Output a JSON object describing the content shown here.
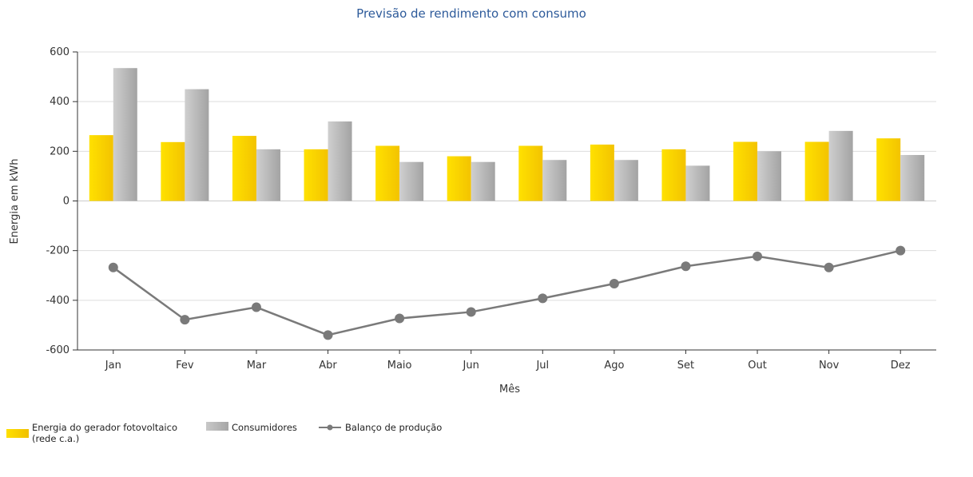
{
  "chart_data": {
    "type": "bar",
    "title": "Previsão de rendimento com consumo",
    "xlabel": "Mês",
    "ylabel": "Energia em kWh",
    "ylim": [
      -600,
      600
    ],
    "yticks": [
      600,
      400,
      200,
      0,
      -200,
      -400,
      -600
    ],
    "grid": true,
    "legend_position": "bottom-left",
    "categories": [
      "Jan",
      "Fev",
      "Mar",
      "Abr",
      "Maio",
      "Jun",
      "Jul",
      "Ago",
      "Set",
      "Out",
      "Nov",
      "Dez"
    ],
    "series": [
      {
        "name": "Energia do gerador fotovoltaico (rede c.a.)",
        "type": "bar",
        "color": "#f5c800",
        "values": [
          265,
          237,
          262,
          208,
          222,
          180,
          222,
          227,
          208,
          238,
          238,
          252
        ]
      },
      {
        "name": "Consumidores",
        "type": "bar",
        "color": "#b2b2b2",
        "values": [
          535,
          450,
          208,
          320,
          157,
          157,
          165,
          165,
          142,
          200,
          282,
          185
        ]
      },
      {
        "name": "Balanço de produção",
        "type": "line",
        "color": "#7a7a7a",
        "values": [
          -268,
          -478,
          -428,
          -540,
          -473,
          -447,
          -392,
          -333,
          -263,
          -223,
          -268,
          -200
        ]
      }
    ]
  },
  "legend": {
    "item1_line1": "Energia do gerador fotovoltaico",
    "item1_line2": "(rede c.a.)",
    "item2": "Consumidores",
    "item3": "Balanço de produção"
  }
}
